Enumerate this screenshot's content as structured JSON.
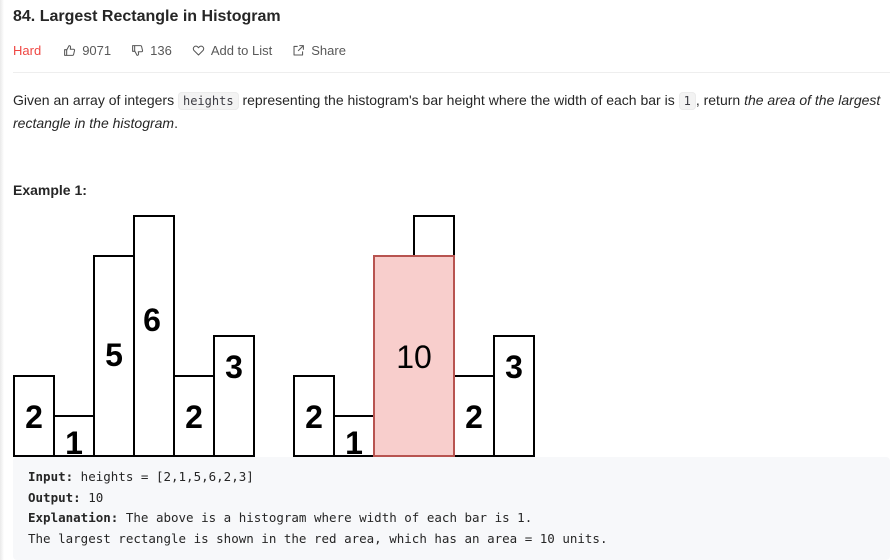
{
  "problem": {
    "title": "84. Largest Rectangle in Histogram",
    "difficulty": "Hard",
    "likes": "9071",
    "dislikes": "136",
    "add_to_list": "Add to List",
    "share": "Share"
  },
  "description": {
    "part1": "Given an array of integers ",
    "code_heights": "heights",
    "part2": " representing the histogram's bar height where the width of each bar is ",
    "code_one": "1",
    "part3": ", return ",
    "italic": "the area of the largest rectangle in the histogram",
    "part4": "."
  },
  "example": {
    "title": "Example 1:",
    "input_label": "Input:",
    "input_value": " heights = [2,1,5,6,2,3]",
    "output_label": "Output:",
    "output_value": " 10",
    "explanation_label": "Explanation:",
    "explanation_value": " The above is a histogram where width of each bar is 1.",
    "explanation_line2": "The largest rectangle is shown in the red area, which has an area = 10 units."
  },
  "chart_data": {
    "type": "bar",
    "values": [
      2,
      1,
      5,
      6,
      2,
      3
    ],
    "bar_labels": [
      "2",
      "1",
      "5",
      "6",
      "2",
      "3"
    ],
    "highlight": {
      "start": 2,
      "end": 3,
      "height": 5,
      "label": "10"
    },
    "highlight_color": "#f8cecc",
    "highlight_border": "#b85450"
  },
  "colors": {
    "accent_hard": "#ef4743",
    "text": "#262626",
    "muted": "#595959"
  }
}
